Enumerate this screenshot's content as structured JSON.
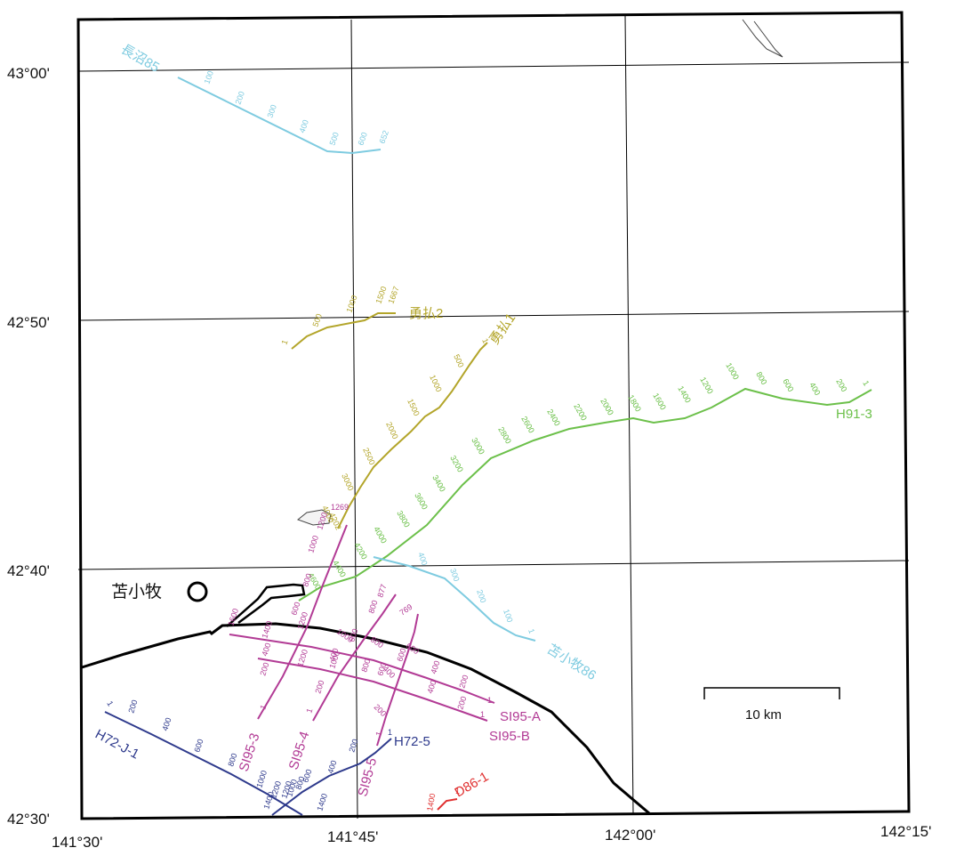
{
  "colors": {
    "cyan": "#7ecbe0",
    "olive": "#b3a52a",
    "green": "#6cc04a",
    "magenta": "#b23b95",
    "navy": "#2e3a8c",
    "red": "#e03030",
    "coast": "#000000",
    "grid": "#000000"
  },
  "lat_labels": [
    "43°00'",
    "42°50'",
    "42°40'",
    "42°30'"
  ],
  "lon_labels": [
    "141°30'",
    "141°45'",
    "142°00'",
    "142°15'"
  ],
  "city": {
    "name": "苫小牧"
  },
  "scale": {
    "label": "10 km"
  },
  "lines": {
    "naganuma85": {
      "name": "長沼85",
      "ticks": [
        "100",
        "200",
        "300",
        "400",
        "500",
        "600",
        "652"
      ]
    },
    "yufutsu2": {
      "name": "勇払2",
      "ticks": [
        "1",
        "500",
        "1000",
        "1500",
        "1667"
      ]
    },
    "yufutsu1": {
      "name": "勇払1",
      "ticks": [
        "1",
        "500",
        "1000",
        "1500",
        "2000",
        "2500",
        "3000",
        "4000",
        "4202"
      ]
    },
    "h91_3": {
      "name": "H91-3",
      "ticks": [
        "1",
        "200",
        "400",
        "600",
        "800",
        "1000",
        "1200",
        "1400",
        "1600",
        "1800",
        "2000",
        "2200",
        "2400",
        "2600",
        "2800",
        "3000",
        "3200",
        "3400",
        "3600",
        "3800",
        "4000",
        "4200",
        "4400",
        "4600"
      ]
    },
    "tomakomai86": {
      "name": "苫小牧86",
      "ticks": [
        "1",
        "100",
        "200",
        "300",
        "400"
      ]
    },
    "si95_3": {
      "name": "SI95-3",
      "ticks": [
        "1",
        "200",
        "400",
        "600",
        "800",
        "1000",
        "1200",
        "1269"
      ]
    },
    "si95_4": {
      "name": "SI95-4",
      "ticks": [
        "1",
        "200",
        "400",
        "600",
        "800",
        "877"
      ]
    },
    "si95_5": {
      "name": "SI95-5",
      "ticks": [
        "1",
        "200",
        "400",
        "600",
        "769"
      ]
    },
    "si95_a": {
      "name": "SI95-A",
      "ticks": [
        "1",
        "200",
        "400",
        "600",
        "800",
        "1000",
        "1200",
        "1400",
        "1600"
      ]
    },
    "si95_b": {
      "name": "SI95-B",
      "ticks": [
        "1",
        "200",
        "400",
        "600",
        "800",
        "1000",
        "1200"
      ]
    },
    "h72_5": {
      "name": "H72-5",
      "ticks": [
        "1",
        "200",
        "400",
        "600",
        "800",
        "1000",
        "1200",
        "1400"
      ]
    },
    "h72_j_1": {
      "name": "H72-J-1",
      "ticks": [
        "1",
        "200",
        "400",
        "600",
        "800",
        "1000",
        "1200",
        "1400"
      ]
    },
    "d86_1": {
      "name": "D86-1",
      "ticks": [
        "1",
        "1400"
      ]
    }
  }
}
